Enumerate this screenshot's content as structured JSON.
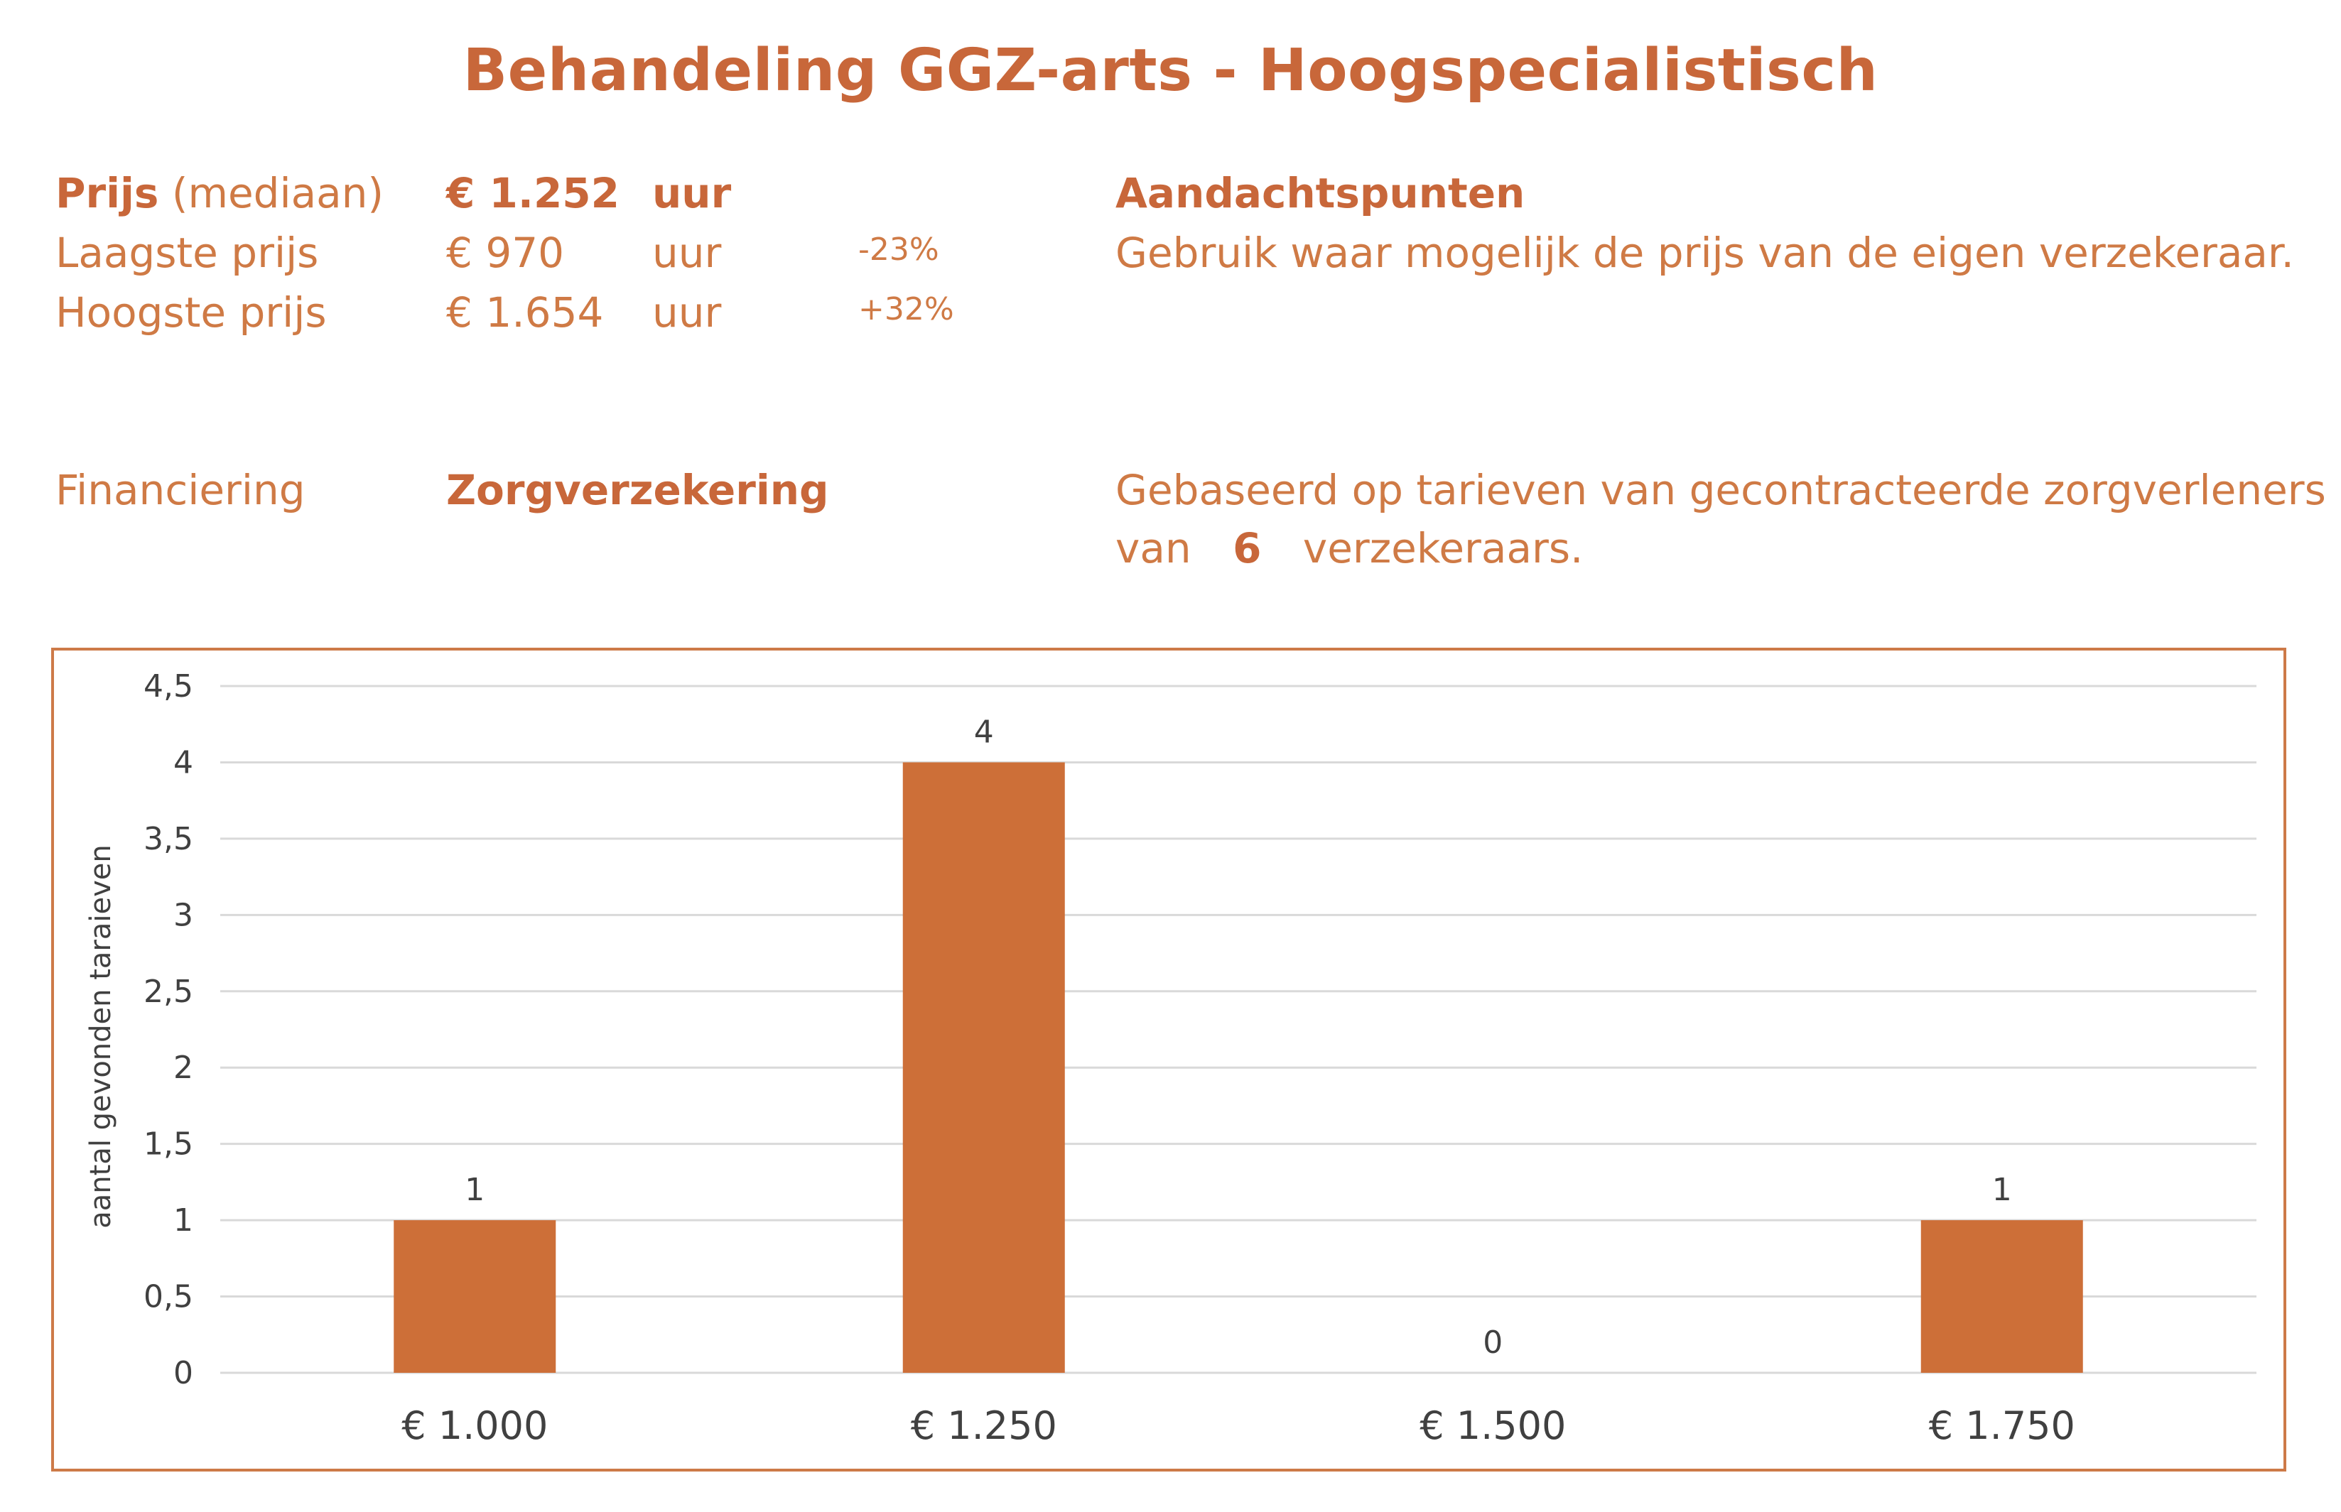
{
  "title": "Behandeling GGZ-arts - Hoogspecialistisch",
  "prices": {
    "median": {
      "label_bold": "Prijs",
      "label_rest": "(mediaan)",
      "value": "€ 1.252",
      "unit": "uur"
    },
    "lowest": {
      "label": "Laagste prijs",
      "value": "€ 970",
      "unit": "uur",
      "pct": "-23%"
    },
    "highest": {
      "label": "Hoogste prijs",
      "value": "€ 1.654",
      "unit": "uur",
      "pct": "+32%"
    }
  },
  "attention": {
    "heading": "Aandachtspunten",
    "text": "Gebruik waar mogelijk de prijs van de eigen verzekeraar."
  },
  "financing": {
    "label": "Financiering",
    "value": "Zorgverzekering",
    "basis_line1": "Gebaseerd op tarieven van gecontracteerde zorgverleners",
    "basis_prefix": "van",
    "basis_count": "6",
    "basis_suffix": "verzekeraars."
  },
  "chart_data": {
    "type": "bar",
    "categories": [
      "€ 1.000",
      "€ 1.250",
      "€ 1.500",
      "€ 1.750"
    ],
    "values": [
      1,
      4,
      0,
      1
    ],
    "data_labels": [
      "1",
      "4",
      "0",
      "1"
    ],
    "ylabel": "aantal gevonden taraieven",
    "ylim": [
      0,
      4.5
    ],
    "yticks": [
      "0",
      "0,5",
      "1",
      "1,5",
      "2",
      "2,5",
      "3",
      "3,5",
      "4",
      "4,5"
    ],
    "ytick_values": [
      0,
      0.5,
      1,
      1.5,
      2,
      2.5,
      3,
      3.5,
      4,
      4.5
    ],
    "grid": true,
    "bar_color": "#cd6f38",
    "gridline_color": "#d9d9d9"
  },
  "colors": {
    "accent": "#c8673a",
    "frame": "#cd7a48"
  }
}
